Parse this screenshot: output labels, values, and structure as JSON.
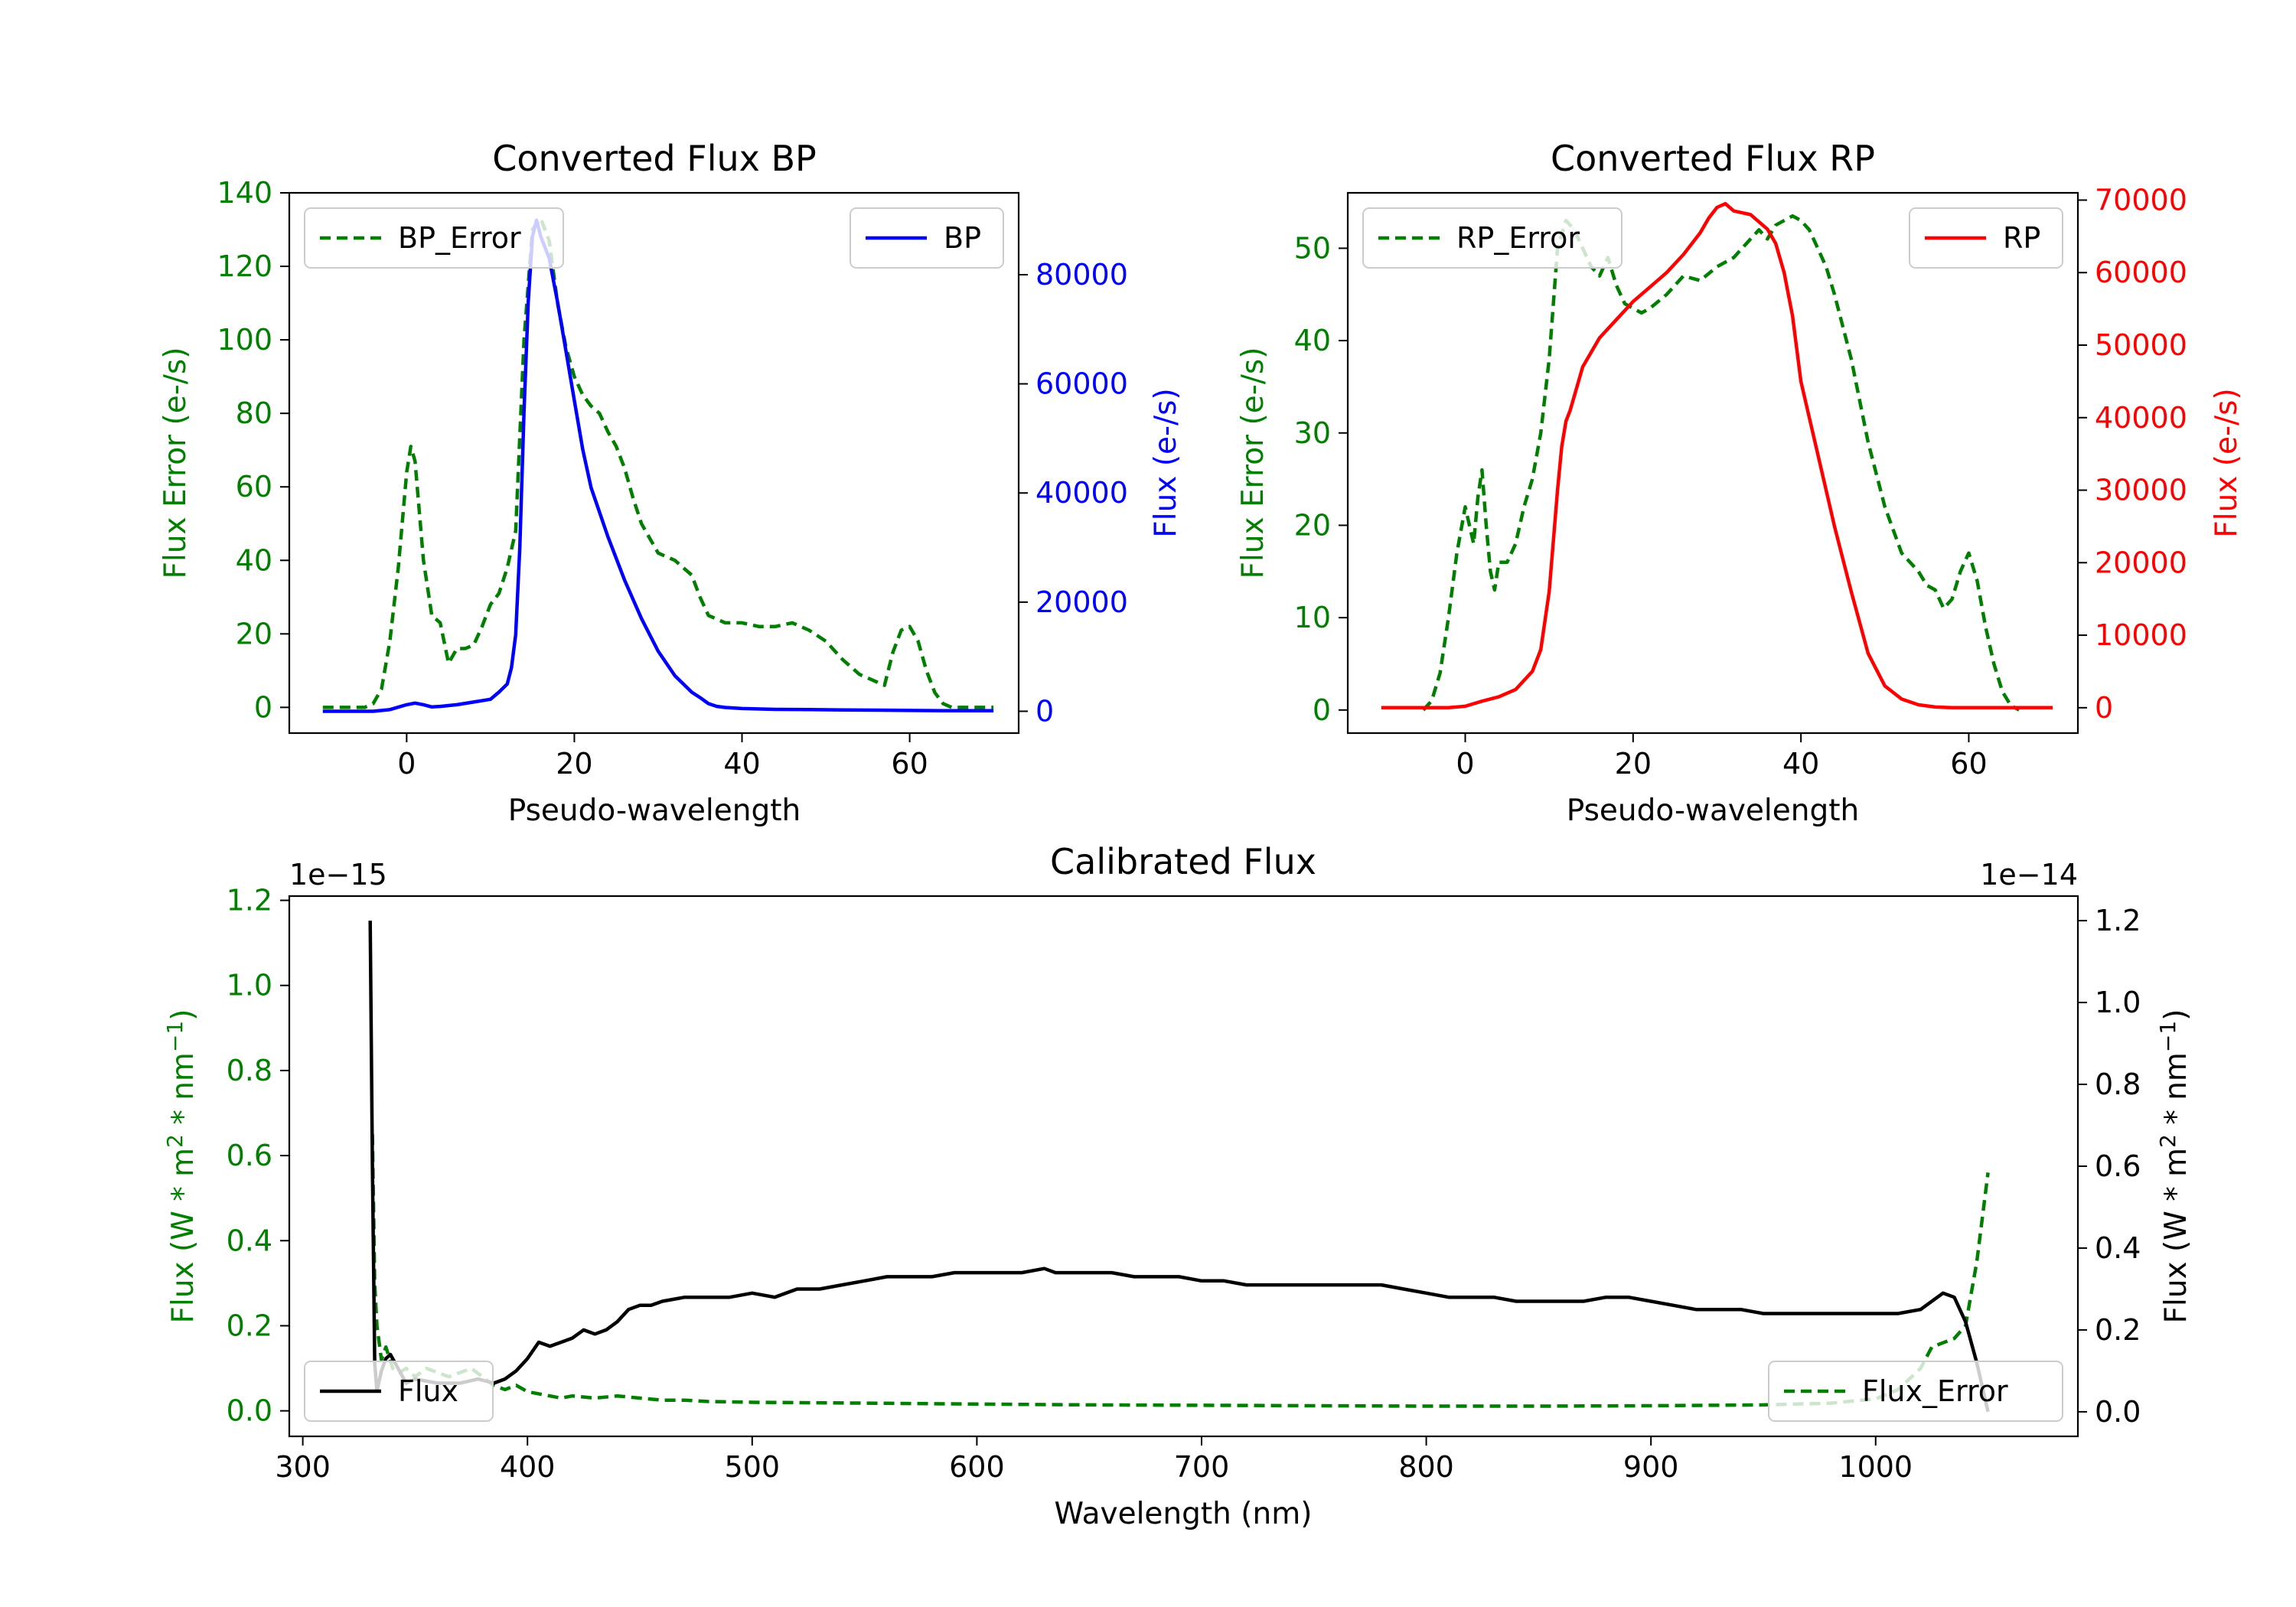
{
  "colors": {
    "error": "#007f00",
    "bp": "#0000ff",
    "rp": "#ff0000",
    "flux": "#000000",
    "axis": "#000000"
  },
  "chart_data": [
    {
      "id": "bp",
      "type": "line",
      "title": "Converted Flux BP",
      "xlabel": "Pseudo-wavelength",
      "ylabel_left": "Flux Error (e-/s)",
      "ylabel_right": "Flux (e-/s)",
      "xlim": [
        -14,
        73
      ],
      "ylim_left": [
        -7,
        140
      ],
      "ylim_right": [
        -4000,
        95000
      ],
      "xticks": [
        0,
        20,
        40,
        60
      ],
      "yticks_left": [
        0,
        20,
        40,
        60,
        80,
        100,
        120,
        140
      ],
      "yticks_right": [
        0,
        20000,
        40000,
        60000,
        80000
      ],
      "series": [
        {
          "name": "BP_Error",
          "axis": "left",
          "style": "dashed",
          "color": "error",
          "x": [
            -10,
            -5,
            -4,
            -3,
            -2,
            -1,
            0,
            0.5,
            1,
            2,
            3,
            4,
            5,
            6,
            7,
            8,
            9,
            10,
            11,
            12,
            13,
            14,
            15,
            16,
            17,
            18,
            19,
            20,
            21,
            22,
            23,
            24,
            25,
            26,
            27,
            28,
            29,
            30,
            31,
            32,
            33,
            34,
            35,
            36,
            37,
            38,
            39,
            40,
            42,
            44,
            46,
            48,
            50,
            52,
            54,
            56,
            57,
            58,
            59,
            60,
            61,
            62,
            63,
            64,
            65,
            66,
            68,
            70
          ],
          "y": [
            0,
            0,
            1,
            5,
            18,
            38,
            64,
            71,
            67,
            40,
            25,
            23,
            12,
            16,
            16,
            17,
            22,
            28,
            31,
            38,
            48,
            100,
            130,
            133,
            127,
            110,
            98,
            90,
            85,
            82,
            80,
            75,
            71,
            65,
            57,
            50,
            46,
            42,
            41,
            40,
            38,
            36,
            30,
            25,
            24,
            23,
            23,
            23,
            22,
            22,
            23,
            21,
            18,
            13,
            9,
            7,
            6,
            15,
            21,
            22,
            18,
            10,
            4,
            1,
            0,
            0,
            0,
            0
          ]
        },
        {
          "name": "BP",
          "axis": "right",
          "style": "solid",
          "color": "bp",
          "x": [
            -10,
            -6,
            -4,
            -2,
            0,
            1,
            2,
            3,
            4,
            6,
            8,
            10,
            11,
            12,
            12.5,
            13,
            13.5,
            14,
            14.5,
            15,
            15.5,
            16,
            16.5,
            17,
            18,
            19,
            20,
            21,
            22,
            24,
            26,
            28,
            30,
            32,
            34,
            35,
            36,
            37,
            38,
            40,
            44,
            48,
            52,
            56,
            60,
            64,
            66,
            68,
            70
          ],
          "y": [
            0,
            0,
            0,
            300,
            1200,
            1500,
            1200,
            800,
            900,
            1200,
            1700,
            2200,
            3500,
            5000,
            8000,
            14000,
            30000,
            55000,
            75000,
            87000,
            90000,
            87000,
            85000,
            83000,
            75000,
            66000,
            57000,
            48000,
            41000,
            32000,
            24000,
            17000,
            11000,
            6500,
            3500,
            2500,
            1400,
            900,
            700,
            500,
            350,
            300,
            250,
            200,
            150,
            100,
            100,
            100,
            100
          ]
        }
      ],
      "legends": [
        {
          "entries": [
            "BP_Error"
          ],
          "loc": "upper-left"
        },
        {
          "entries": [
            "BP"
          ],
          "loc": "upper-right"
        }
      ]
    },
    {
      "id": "rp",
      "type": "line",
      "title": "Converted Flux RP",
      "xlabel": "Pseudo-wavelength",
      "ylabel_left": "Flux Error (e-/s)",
      "ylabel_right": "Flux (e-/s)",
      "xlim": [
        -14,
        73
      ],
      "ylim_left": [
        -2.5,
        56
      ],
      "ylim_right": [
        -3500,
        71000
      ],
      "xticks": [
        0,
        20,
        40,
        60
      ],
      "yticks_left": [
        0,
        10,
        20,
        30,
        40,
        50
      ],
      "yticks_right": [
        0,
        10000,
        20000,
        30000,
        40000,
        50000,
        60000,
        70000
      ],
      "series": [
        {
          "name": "RP_Error",
          "axis": "left",
          "style": "dashed",
          "color": "error",
          "x": [
            -5,
            -4,
            -3,
            -2,
            -1,
            0,
            0.5,
            1,
            1.5,
            2,
            2.5,
            3,
            3.5,
            4,
            5,
            6,
            7,
            8,
            9,
            10,
            11,
            12,
            13,
            14,
            15,
            16,
            17,
            18,
            19,
            20,
            21,
            22,
            24,
            26,
            28,
            30,
            32,
            34,
            35,
            36,
            37,
            38,
            39,
            40,
            41,
            42,
            43,
            44,
            46,
            48,
            50,
            52,
            54,
            55,
            56,
            57,
            58,
            59,
            60,
            61,
            62,
            63,
            64,
            65,
            66
          ],
          "y": [
            0,
            1,
            4,
            10,
            17,
            22,
            20,
            18,
            23,
            26,
            20,
            15,
            13,
            16,
            16,
            18,
            22,
            25,
            30,
            38,
            50,
            53,
            52,
            50,
            48,
            47,
            49,
            46,
            44,
            43.5,
            43,
            43.5,
            45,
            47,
            46.5,
            48,
            49,
            51,
            52,
            51,
            52.5,
            53,
            53.5,
            53,
            52,
            50,
            48,
            45,
            38,
            29,
            22,
            17,
            15,
            13.5,
            13,
            11,
            12,
            15,
            17,
            14,
            9,
            5,
            2,
            0.5,
            0
          ]
        },
        {
          "name": "RP",
          "axis": "right",
          "style": "solid",
          "color": "rp",
          "x": [
            -10,
            -6,
            -2,
            0,
            2,
            4,
            6,
            8,
            9,
            10,
            11,
            11.5,
            12,
            12.5,
            13,
            14,
            15,
            16,
            18,
            20,
            22,
            24,
            26,
            28,
            29,
            30,
            31,
            32,
            34,
            36,
            37,
            38,
            39,
            40,
            42,
            44,
            46,
            48,
            50,
            52,
            54,
            56,
            58,
            60,
            64,
            70
          ],
          "y": [
            0,
            0,
            0,
            200,
            900,
            1500,
            2500,
            5000,
            8000,
            16000,
            30000,
            36000,
            39500,
            41000,
            43000,
            47000,
            49000,
            51000,
            53500,
            56000,
            58000,
            60000,
            62500,
            65500,
            67500,
            69000,
            69500,
            68500,
            68000,
            66000,
            64000,
            60000,
            54000,
            45000,
            35000,
            25000,
            16000,
            7500,
            3000,
            1200,
            400,
            100,
            0,
            0,
            0,
            0
          ]
        }
      ],
      "legends": [
        {
          "entries": [
            "RP_Error"
          ],
          "loc": "upper-left"
        },
        {
          "entries": [
            "RP"
          ],
          "loc": "upper-right"
        }
      ]
    },
    {
      "id": "cal",
      "type": "line",
      "title": "Calibrated Flux",
      "xlabel": "Wavelength (nm)",
      "ylabel_left": "Flux (W * m",
      "ylabel_left_sup": "2",
      "ylabel_left_mid": " * nm",
      "ylabel_left_sup2": "−1",
      "ylabel_left_end": ")",
      "ylabel_right": "Flux (W * m",
      "ylabel_right_sup": "2",
      "ylabel_right_mid": " * nm",
      "ylabel_right_sup2": "−1",
      "ylabel_right_end": ")",
      "left_multiplier": "1e−15",
      "right_multiplier": "1e−14",
      "xlim": [
        294,
        1090
      ],
      "ylim_left": [
        -0.06,
        1.21
      ],
      "ylim_right": [
        -0.06,
        1.26
      ],
      "xticks": [
        300,
        400,
        500,
        600,
        700,
        800,
        900,
        1000
      ],
      "yticks_left": [
        0.0,
        0.2,
        0.4,
        0.6,
        0.8,
        1.0,
        1.2
      ],
      "yticks_right": [
        0.0,
        0.2,
        0.4,
        0.6,
        0.8,
        1.0,
        1.2
      ],
      "tick_labels_left": [
        "0.0",
        "0.2",
        "0.4",
        "0.6",
        "0.8",
        "1.0",
        "1.2"
      ],
      "tick_labels_right": [
        "0.0",
        "0.2",
        "0.4",
        "0.6",
        "0.8",
        "1.0",
        "1.2"
      ],
      "series": [
        {
          "name": "Flux",
          "axis": "right",
          "style": "solid",
          "color": "flux",
          "x": [
            330,
            331,
            332,
            333,
            335,
            337,
            339,
            341,
            343,
            346,
            350,
            360,
            370,
            378,
            385,
            390,
            395,
            400,
            405,
            410,
            415,
            420,
            425,
            430,
            435,
            440,
            445,
            450,
            455,
            460,
            470,
            480,
            490,
            500,
            510,
            520,
            530,
            540,
            550,
            560,
            570,
            580,
            590,
            600,
            610,
            620,
            630,
            635,
            640,
            650,
            660,
            670,
            680,
            690,
            700,
            710,
            720,
            730,
            740,
            750,
            760,
            770,
            780,
            790,
            800,
            810,
            820,
            830,
            840,
            850,
            860,
            870,
            880,
            890,
            900,
            910,
            920,
            930,
            940,
            950,
            960,
            970,
            980,
            990,
            1000,
            1010,
            1020,
            1030,
            1035,
            1040,
            1045,
            1050
          ],
          "y": [
            1.2,
            0.6,
            0.12,
            0.05,
            0.1,
            0.13,
            0.14,
            0.12,
            0.1,
            0.07,
            0.08,
            0.07,
            0.07,
            0.08,
            0.07,
            0.08,
            0.1,
            0.13,
            0.17,
            0.16,
            0.17,
            0.18,
            0.2,
            0.19,
            0.2,
            0.22,
            0.25,
            0.26,
            0.26,
            0.27,
            0.28,
            0.28,
            0.28,
            0.29,
            0.28,
            0.3,
            0.3,
            0.31,
            0.32,
            0.33,
            0.33,
            0.33,
            0.34,
            0.34,
            0.34,
            0.34,
            0.35,
            0.34,
            0.34,
            0.34,
            0.34,
            0.33,
            0.33,
            0.33,
            0.32,
            0.32,
            0.31,
            0.31,
            0.31,
            0.31,
            0.31,
            0.31,
            0.31,
            0.3,
            0.29,
            0.28,
            0.28,
            0.28,
            0.27,
            0.27,
            0.27,
            0.27,
            0.28,
            0.28,
            0.27,
            0.26,
            0.25,
            0.25,
            0.25,
            0.24,
            0.24,
            0.24,
            0.24,
            0.24,
            0.24,
            0.24,
            0.25,
            0.29,
            0.28,
            0.22,
            0.12,
            0.0
          ]
        },
        {
          "name": "Flux_Error",
          "axis": "left",
          "style": "dashed",
          "color": "error",
          "x": [
            331,
            332,
            333,
            335,
            337,
            340,
            343,
            346,
            350,
            355,
            360,
            365,
            370,
            375,
            380,
            385,
            390,
            395,
            400,
            405,
            410,
            415,
            420,
            430,
            440,
            450,
            460,
            470,
            480,
            500,
            550,
            600,
            650,
            700,
            750,
            800,
            850,
            900,
            950,
            980,
            1000,
            1010,
            1020,
            1025,
            1030,
            1035,
            1040,
            1045,
            1050
          ],
          "y": [
            0.65,
            0.3,
            0.2,
            0.12,
            0.15,
            0.1,
            0.09,
            0.1,
            0.08,
            0.1,
            0.09,
            0.08,
            0.09,
            0.1,
            0.08,
            0.06,
            0.05,
            0.06,
            0.045,
            0.04,
            0.035,
            0.03,
            0.035,
            0.03,
            0.035,
            0.03,
            0.025,
            0.025,
            0.022,
            0.02,
            0.018,
            0.016,
            0.014,
            0.013,
            0.012,
            0.011,
            0.011,
            0.012,
            0.014,
            0.018,
            0.028,
            0.05,
            0.1,
            0.15,
            0.16,
            0.17,
            0.2,
            0.35,
            0.56
          ]
        }
      ],
      "legends": [
        {
          "entries": [
            "Flux"
          ],
          "loc": "lower-left"
        },
        {
          "entries": [
            "Flux_Error"
          ],
          "loc": "lower-right"
        }
      ]
    }
  ]
}
